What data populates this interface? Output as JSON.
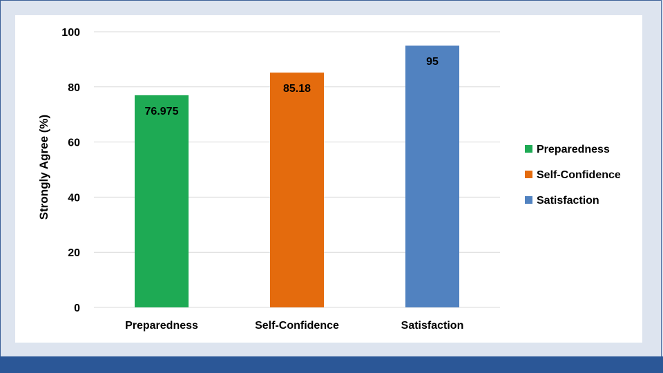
{
  "chart_data": {
    "type": "bar",
    "categories": [
      "Preparedness",
      "Self-Confidence",
      "Satisfaction"
    ],
    "values": [
      76.975,
      85.18,
      95
    ],
    "data_labels": [
      "76.975",
      "85.18",
      "95"
    ],
    "colors": [
      "#1eaa54",
      "#e46b0d",
      "#5182c0"
    ],
    "title": "",
    "xlabel": "",
    "ylabel": "Strongly Agree (%)",
    "ylim": [
      0,
      100
    ],
    "yticks": [
      0,
      20,
      40,
      60,
      80,
      100
    ],
    "grid": true,
    "legend": {
      "position": "right",
      "entries": [
        "Preparedness",
        "Self-Confidence",
        "Satisfaction"
      ]
    }
  },
  "colors": {
    "background": "#dde4ef",
    "panel": "#ffffff",
    "footer": "#2b5797",
    "grid": "#d9d9d9"
  }
}
